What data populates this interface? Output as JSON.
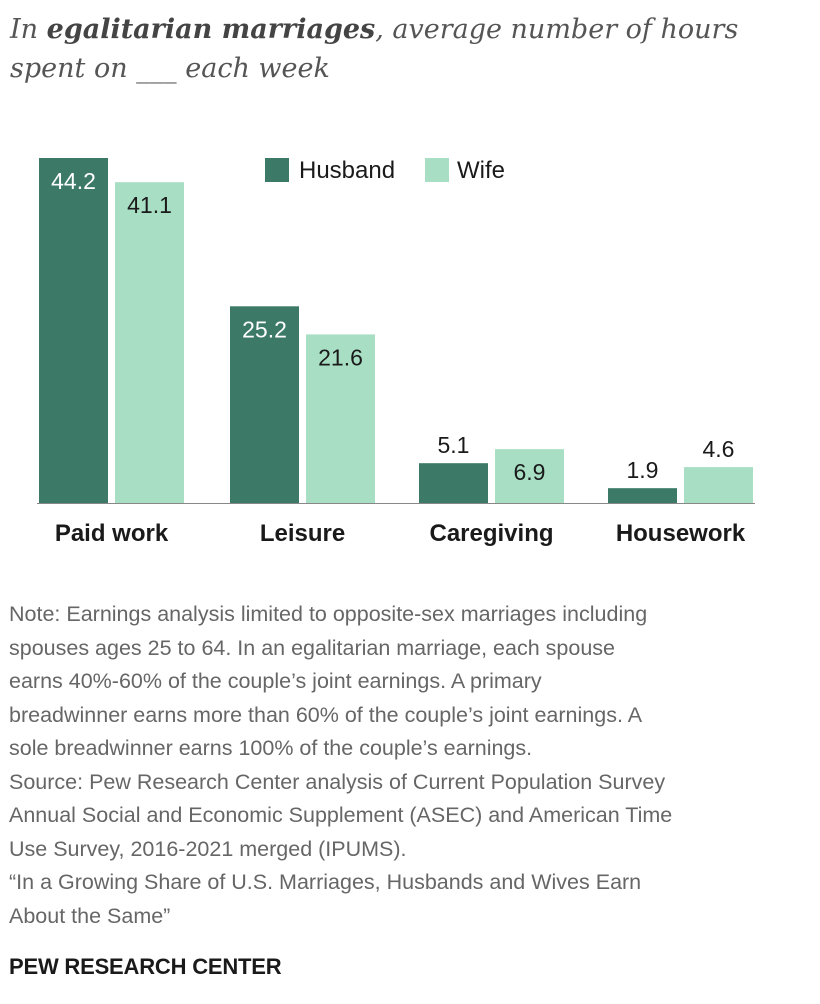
{
  "title": {
    "prefix": "In ",
    "emphasis": "egalitarian marriages",
    "rest": ", average number of hours",
    "line2": "spent on ___ each week"
  },
  "chart_data": {
    "type": "bar",
    "categories": [
      "Paid work",
      "Leisure",
      "Caregiving",
      "Housework"
    ],
    "series": [
      {
        "name": "Husband",
        "values": [
          44.2,
          25.2,
          5.1,
          1.9
        ],
        "value_labels": [
          "44.2",
          "25.2",
          "5.1",
          "1.9"
        ],
        "color": "#3c7a67"
      },
      {
        "name": "Wife",
        "values": [
          41.1,
          21.6,
          6.9,
          4.6
        ],
        "value_labels": [
          "41.1",
          "21.6",
          "6.9",
          "4.6"
        ],
        "color": "#a8dfc4"
      }
    ],
    "ylim": [
      0,
      44.2
    ],
    "xlabel": "",
    "ylabel": "",
    "legend": "top-center",
    "grid": false
  },
  "note_lines": [
    "Note: Earnings analysis limited to opposite-sex marriages including",
    "spouses ages 25 to 64. In an egalitarian marriage, each spouse",
    "earns 40%-60% of the couple’s joint earnings. A primary",
    "breadwinner earns more than 60% of the couple’s joint earnings. A",
    "sole breadwinner earns 100% of the couple’s earnings.",
    "Source: Pew Research Center analysis of Current Population Survey",
    "Annual Social and Economic Supplement (ASEC) and American Time",
    "Use Survey, 2016-2021 merged (IPUMS).",
    "“In a Growing Share of U.S. Marriages, Husbands and Wives Earn",
    "About the Same”"
  ],
  "source_org": "PEW RESEARCH CENTER"
}
